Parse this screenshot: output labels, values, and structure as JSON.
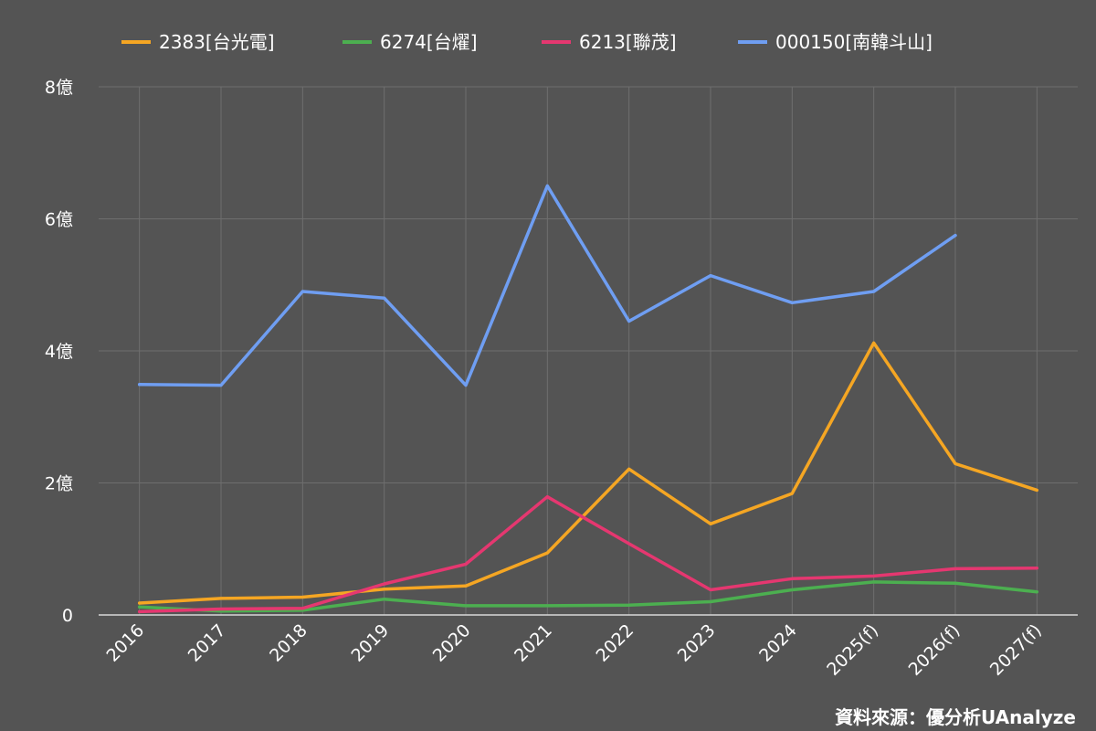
{
  "chart_data": {
    "type": "line",
    "categories": [
      "2016",
      "2017",
      "2018",
      "2019",
      "2020",
      "2021",
      "2022",
      "2023",
      "2024",
      "2025(f)",
      "2026(f)",
      "2027(f)"
    ],
    "y_unit_suffix": "億",
    "ylim": [
      0,
      8
    ],
    "y_ticks": [
      {
        "value": 0,
        "label": "0"
      },
      {
        "value": 2,
        "label": "2億"
      },
      {
        "value": 4,
        "label": "4億"
      },
      {
        "value": 6,
        "label": "6億"
      },
      {
        "value": 8,
        "label": "8億"
      }
    ],
    "grid": true,
    "legend_position": "top",
    "series": [
      {
        "name": "2383[台光電]",
        "color": "#f5a623",
        "values": [
          0.18,
          0.25,
          0.27,
          0.39,
          0.44,
          0.94,
          2.21,
          1.38,
          1.84,
          4.12,
          2.29,
          1.89
        ]
      },
      {
        "name": "6274[台燿]",
        "color": "#4caf50",
        "values": [
          0.12,
          0.06,
          0.07,
          0.24,
          0.14,
          0.14,
          0.15,
          0.2,
          0.38,
          0.5,
          0.48,
          0.35
        ]
      },
      {
        "name": "6213[聯茂]",
        "color": "#e53770",
        "values": [
          0.05,
          0.09,
          0.1,
          0.47,
          0.77,
          1.79,
          1.08,
          0.38,
          0.55,
          0.59,
          0.7,
          0.71
        ]
      },
      {
        "name": "000150[南韓斗山]",
        "color": "#6f9ef2",
        "values": [
          3.49,
          3.48,
          4.9,
          4.8,
          3.48,
          6.5,
          4.45,
          5.14,
          4.73,
          4.9,
          5.75,
          null
        ]
      }
    ]
  },
  "source_note": "資料來源：優分析UAnalyze"
}
